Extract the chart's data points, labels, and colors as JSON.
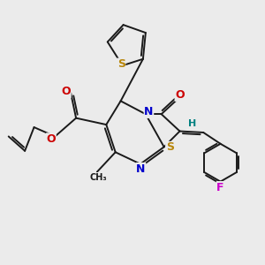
{
  "bg_color": "#ebebeb",
  "bond_color": "#1a1a1a",
  "atom_colors": {
    "S": "#b8860b",
    "N": "#0000cc",
    "O": "#cc0000",
    "F": "#cc00cc",
    "C": "#1a1a1a",
    "H": "#008080"
  },
  "font_size": 8,
  "figsize": [
    3.0,
    3.0
  ],
  "dpi": 100
}
